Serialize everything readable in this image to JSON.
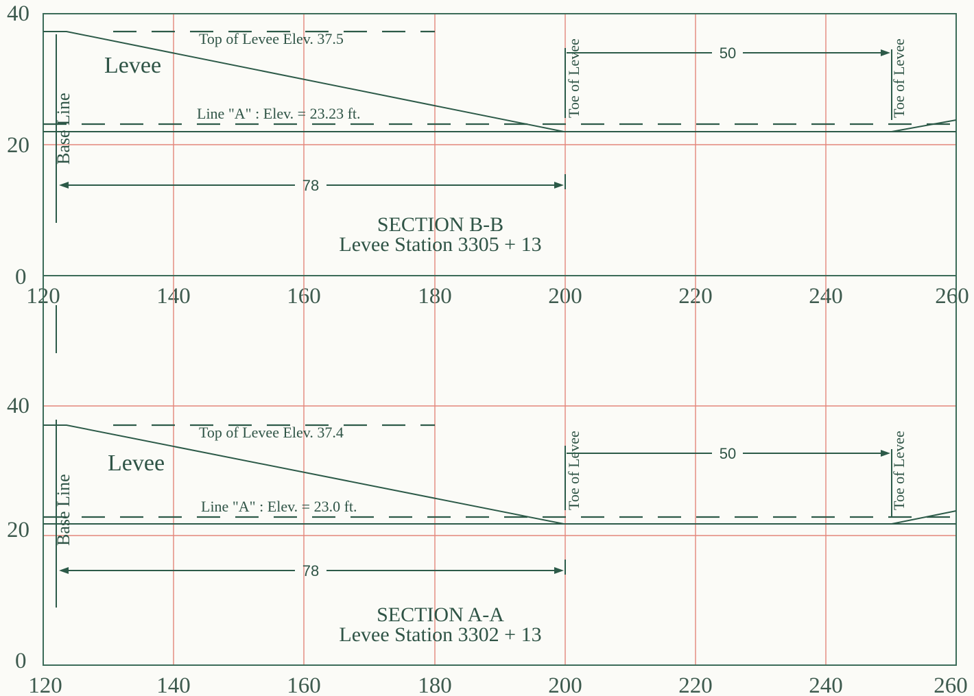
{
  "x_axis": {
    "ticks": [
      "120",
      "140",
      "160",
      "180",
      "200",
      "220",
      "240",
      "260"
    ]
  },
  "y_axis": {
    "ticks": [
      "0",
      "20",
      "40"
    ]
  },
  "sections": [
    {
      "id": "bb",
      "title": "SECTION B-B",
      "subtitle": "Levee Station 3305 + 13",
      "levee_label": "Levee",
      "base_line_label": "Base Line",
      "top_label": "Top of Levee Elev. 37.5",
      "line_a_label": "Line \"A\" : Elev. = 23.23 ft.",
      "toe_left_label": "Toe of Levee",
      "toe_right_label": "Toe of Levee",
      "dim_toe": "50",
      "dim_base": "78",
      "profile": [
        [
          120,
          37.5
        ],
        [
          123.5,
          37.5
        ],
        [
          200,
          22
        ],
        [
          250,
          22
        ],
        [
          260,
          24
        ]
      ]
    },
    {
      "id": "aa",
      "title": "SECTION A-A",
      "subtitle": "Levee Station 3302 + 13",
      "levee_label": "Levee",
      "base_line_label": "Base Line",
      "top_label": "Top of Levee Elev. 37.4",
      "line_a_label": "Line \"A\" : Elev. = 23.0 ft.",
      "toe_left_label": "Toe of Levee",
      "toe_right_label": "Toe of Levee",
      "dim_toe": "50",
      "dim_base": "78",
      "profile": [
        [
          120,
          37.4
        ],
        [
          123.5,
          37.4
        ],
        [
          200,
          21.5
        ],
        [
          250,
          21.5
        ],
        [
          260,
          23.8
        ]
      ]
    }
  ],
  "colors": {
    "ink": "#2c5a48",
    "grid": "#e3867a",
    "paper": "#fbfbf7"
  }
}
